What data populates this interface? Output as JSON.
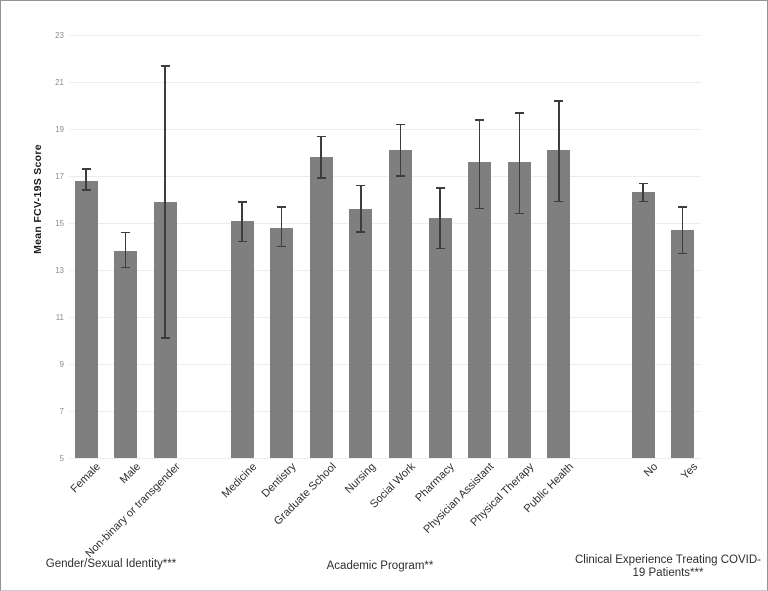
{
  "chart_data": {
    "type": "bar",
    "title": "",
    "ylabel": "Mean FCV-19S Score",
    "xlabel": "",
    "ylim": [
      5,
      23
    ],
    "yticks": [
      5,
      7,
      9,
      11,
      13,
      15,
      17,
      19,
      21,
      23
    ],
    "grid": true,
    "legend": false,
    "bar_color": "#7f7f7f",
    "error_bar_color": "#3d3d3d",
    "gridline_color": "#e7edf4",
    "error_bars": "95% CI whiskers with caps",
    "groups": [
      {
        "label": "Gender/Sexual Identity***",
        "bars": [
          {
            "category": "Female",
            "value": 16.8,
            "ci_low": 16.4,
            "ci_high": 17.3
          },
          {
            "category": "Male",
            "value": 13.8,
            "ci_low": 13.1,
            "ci_high": 14.6
          },
          {
            "category": "Non-binary or transgender",
            "value": 15.9,
            "ci_low": 10.1,
            "ci_high": 21.7
          }
        ]
      },
      {
        "label": "Academic Program**",
        "bars": [
          {
            "category": "Medicine",
            "value": 15.1,
            "ci_low": 14.2,
            "ci_high": 15.9
          },
          {
            "category": "Dentistry",
            "value": 14.8,
            "ci_low": 14.0,
            "ci_high": 15.7
          },
          {
            "category": "Graduate School",
            "value": 17.8,
            "ci_low": 16.9,
            "ci_high": 18.7
          },
          {
            "category": "Nursing",
            "value": 15.6,
            "ci_low": 14.6,
            "ci_high": 16.6
          },
          {
            "category": "Social Work",
            "value": 18.1,
            "ci_low": 17.0,
            "ci_high": 19.2
          },
          {
            "category": "Pharmacy",
            "value": 15.2,
            "ci_low": 13.9,
            "ci_high": 16.5
          },
          {
            "category": "Physician Assistant",
            "value": 17.6,
            "ci_low": 15.6,
            "ci_high": 19.4
          },
          {
            "category": "Physical Therapy",
            "value": 17.6,
            "ci_low": 15.4,
            "ci_high": 19.7
          },
          {
            "category": "Public Health",
            "value": 18.1,
            "ci_low": 15.9,
            "ci_high": 20.2
          }
        ]
      },
      {
        "label": "Clinical Experience Treating COVID-\n19 Patients***",
        "bars": [
          {
            "category": "No",
            "value": 16.3,
            "ci_low": 15.9,
            "ci_high": 16.7
          },
          {
            "category": "Yes",
            "value": 14.7,
            "ci_low": 13.7,
            "ci_high": 15.7
          }
        ]
      }
    ]
  }
}
